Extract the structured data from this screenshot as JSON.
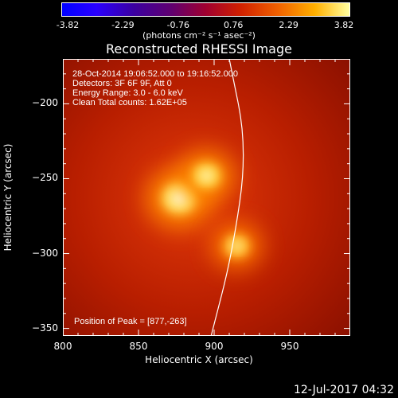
{
  "colorbar": {
    "ticks": [
      "-3.82",
      "-2.29",
      "-0.76",
      "0.76",
      "2.29",
      "3.82"
    ],
    "units": "(photons cm⁻² s⁻¹ asec⁻²)"
  },
  "title": "Reconstructed RHESSI Image",
  "annotations": {
    "time_range": "28-Oct-2014 19:06:52.000 to 19:16:52.000",
    "detectors": "Detectors: 3F 6F 9F, Att 0",
    "energy": "Energy Range: 3.0 - 6.0 keV",
    "clean": "Clean    Total counts: 1.62E+05",
    "peak": "Position of Peak = [877,-263]"
  },
  "footer_date": "12-Jul-2017 04:32",
  "chart_data": {
    "type": "heatmap",
    "title": "Reconstructed RHESSI Image",
    "xlabel": "Heliocentric X (arcsec)",
    "ylabel": "Heliocentric Y (arcsec)",
    "xlim": [
      800,
      990
    ],
    "ylim": [
      -355,
      -170
    ],
    "x_ticks": [
      "800",
      "850",
      "900",
      "950"
    ],
    "y_ticks": [
      "-200",
      "-250",
      "-300",
      "-350"
    ],
    "colormap": "red-temperature",
    "colorbar_range": [
      -3.82,
      3.82
    ],
    "sources": [
      {
        "x": 877,
        "y": -263,
        "intensity": 3.82
      },
      {
        "x": 895,
        "y": -248,
        "intensity": 3.0
      },
      {
        "x": 915,
        "y": -295,
        "intensity": 2.6
      }
    ],
    "limb_curve": [
      [
        910,
        -170
      ],
      [
        922,
        -230
      ],
      [
        912,
        -300
      ],
      [
        898,
        -355
      ]
    ]
  }
}
